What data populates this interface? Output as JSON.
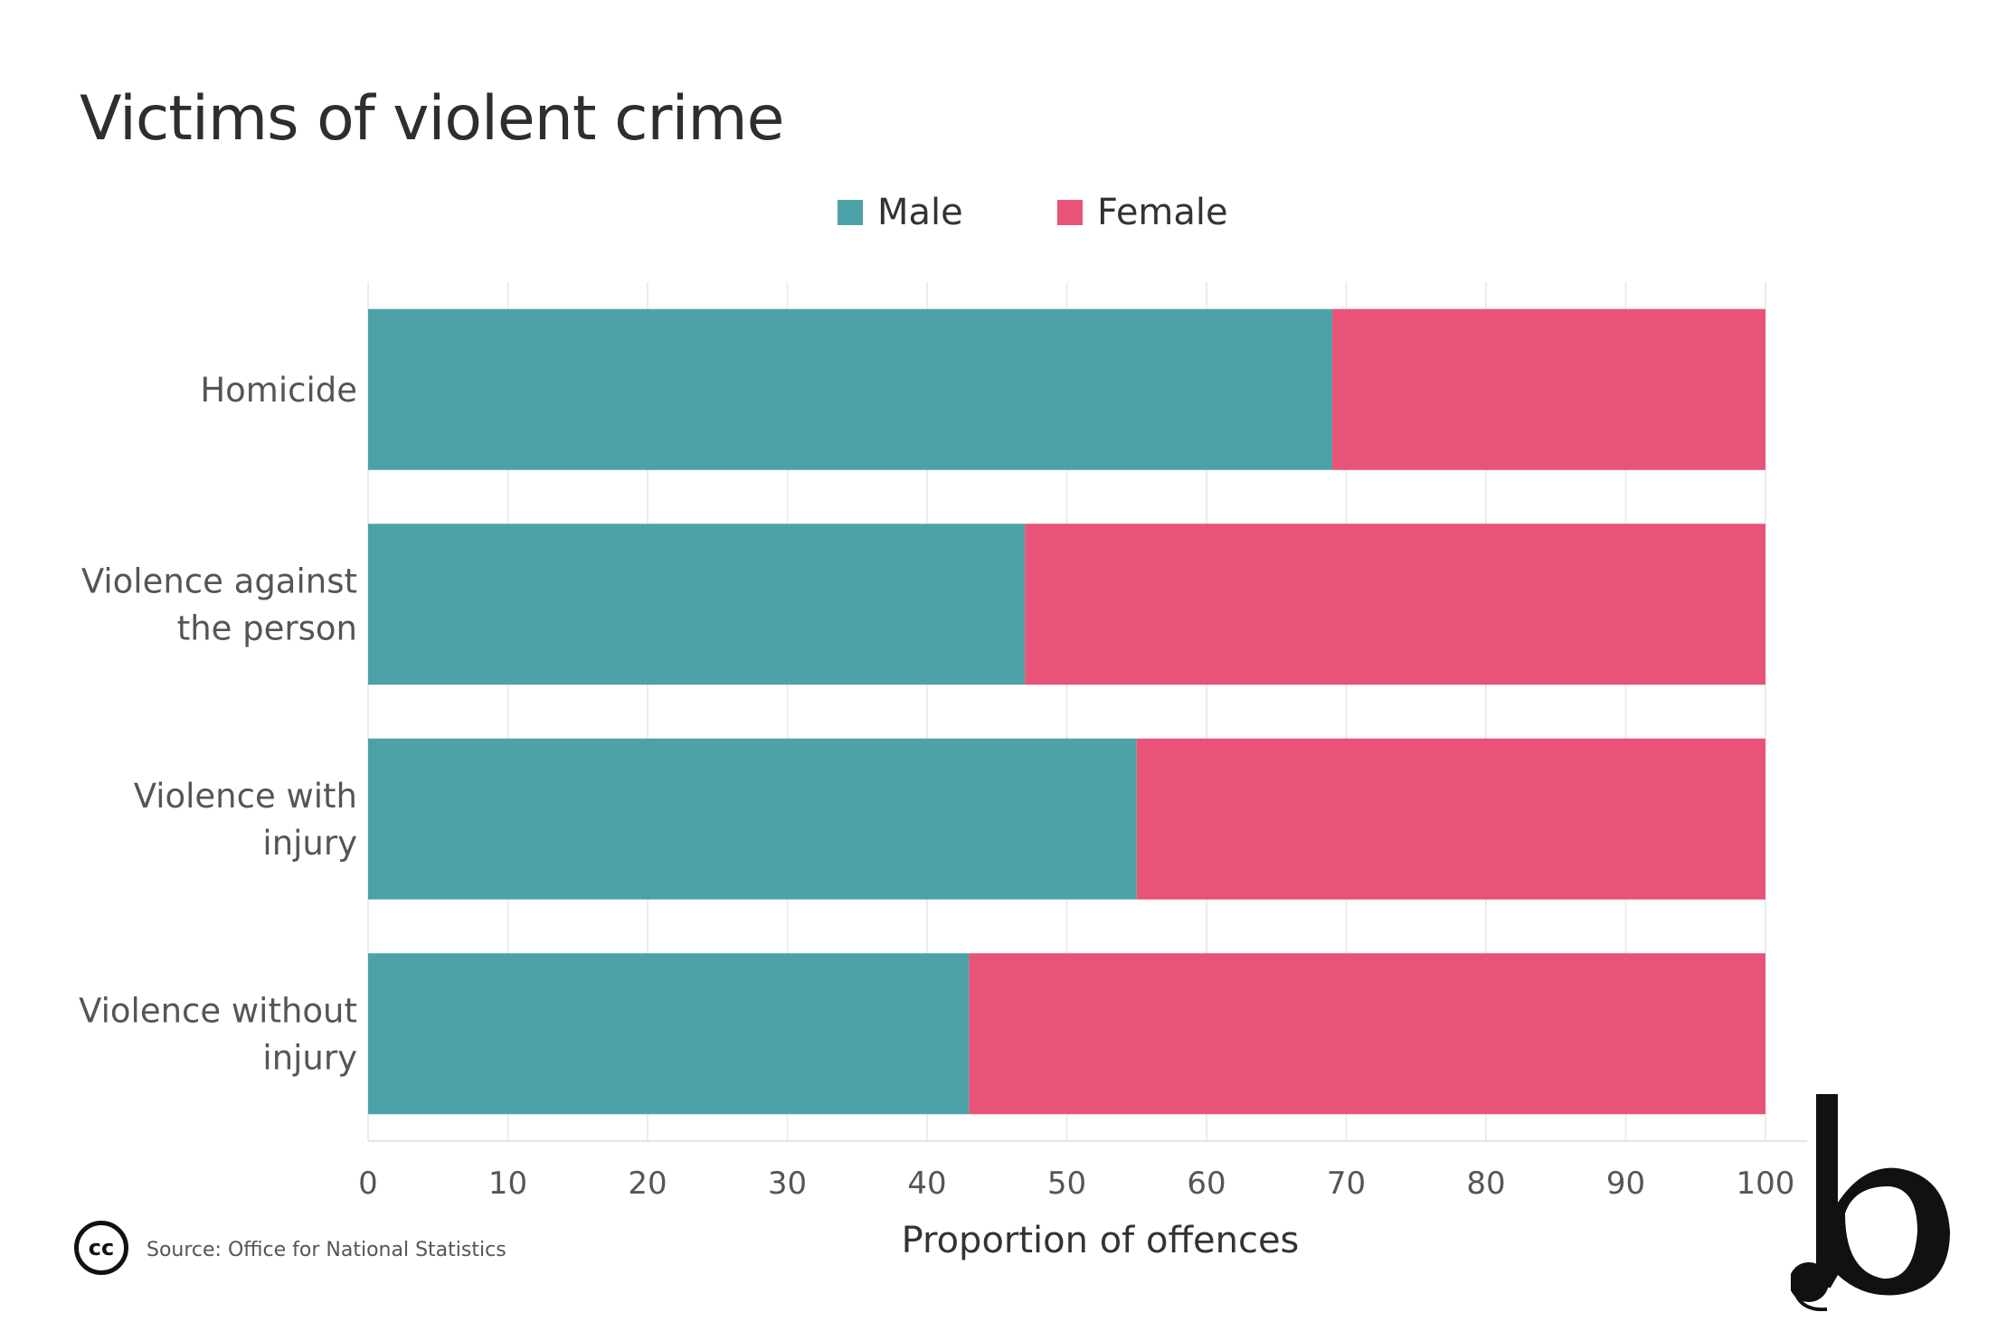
{
  "title": "Victims of violent crime",
  "source": "Source: Office for National Statistics",
  "icons": {
    "license": "creative-commons-icon",
    "logo": "publisher-logo"
  },
  "chart_data": {
    "type": "bar",
    "orientation": "horizontal",
    "stacked": true,
    "categories": [
      "Homicide",
      "Violence against the person",
      "Violence with injury",
      "Violence without injury"
    ],
    "category_lines": [
      [
        "Homicide"
      ],
      [
        "Violence against",
        "the person"
      ],
      [
        "Violence with",
        "injury"
      ],
      [
        "Violence without",
        "injury"
      ]
    ],
    "series": [
      {
        "name": "Male",
        "color": "#4da2a8",
        "values": [
          69,
          47,
          55,
          43
        ]
      },
      {
        "name": "Female",
        "color": "#e85377",
        "values": [
          31,
          53,
          45,
          57
        ]
      }
    ],
    "xlabel": "Proportion of offences",
    "ylabel": "",
    "xlim": [
      0,
      100
    ],
    "xticks": [
      0,
      10,
      20,
      30,
      40,
      50,
      60,
      70,
      80,
      90,
      100
    ],
    "grid": true,
    "legend": "top-center"
  }
}
